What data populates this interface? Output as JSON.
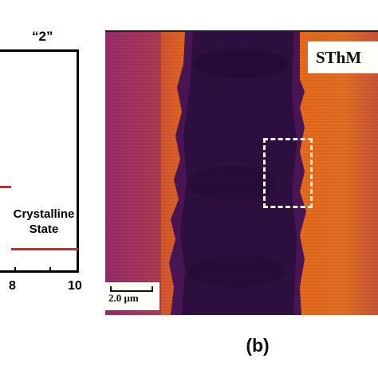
{
  "left_plot": {
    "top_label": "“2”",
    "state_label_line1": "Crystalline",
    "state_label_line2": "State",
    "x_ticks": [
      "8",
      "10"
    ]
  },
  "sthm_image": {
    "label": "SThM",
    "scale_bar": "2.0 μm",
    "colors": {
      "background_orange": "#e0641f",
      "background_magenta": "#9a2a6a",
      "stripe_dark": "#2a0e3c",
      "stripe_mid": "#4a1556"
    }
  },
  "panel_label": "(b)"
}
